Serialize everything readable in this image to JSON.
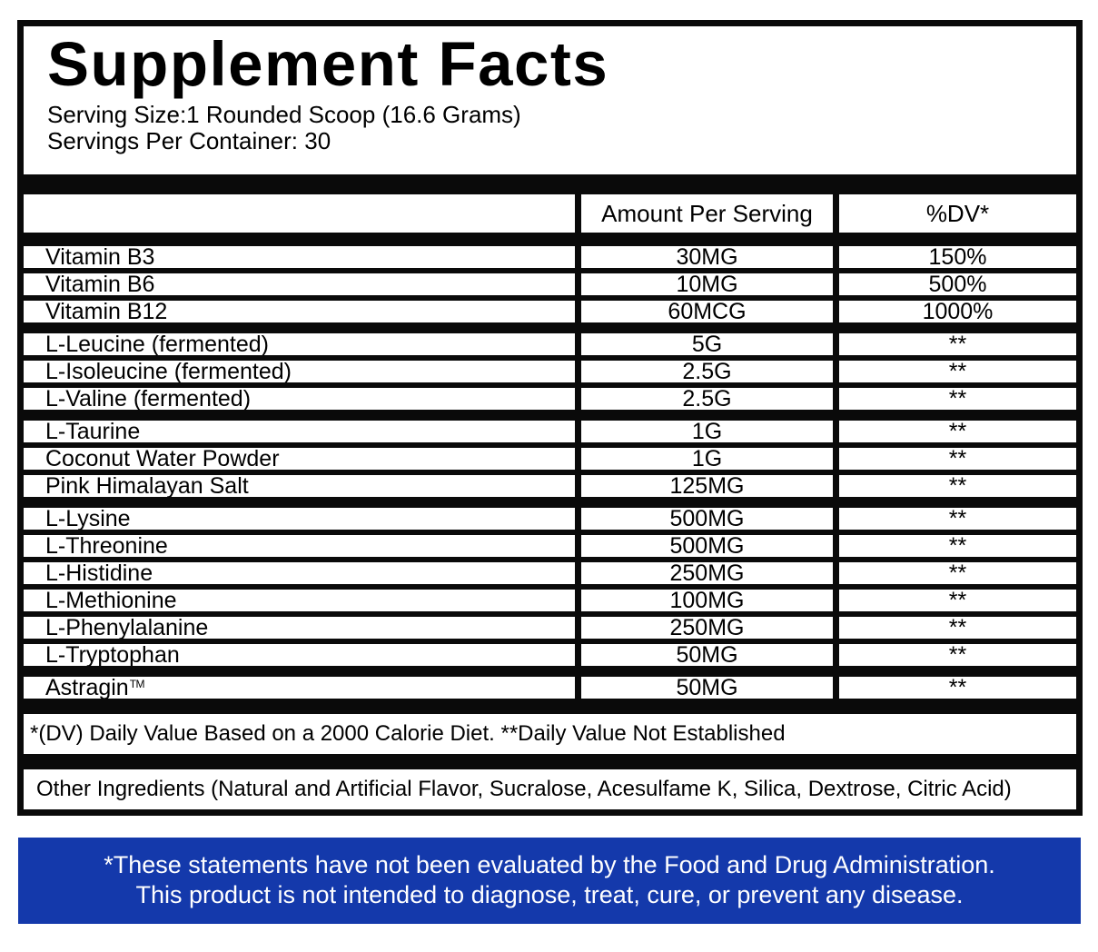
{
  "title": "Supplement Facts",
  "serving_size": "Serving Size:1 Rounded Scoop (16.6 Grams)",
  "servings_per_container": "Servings Per Container: 30",
  "table": {
    "header": {
      "amount": "Amount Per Serving",
      "dv": "%DV*"
    },
    "groups": [
      {
        "rows": [
          {
            "name": "Vitamin B3",
            "amount": "30MG",
            "dv": "150%"
          },
          {
            "name": "Vitamin B6",
            "amount": "10MG",
            "dv": "500%"
          },
          {
            "name": "Vitamin B12",
            "amount": "60MCG",
            "dv": "1000%"
          }
        ]
      },
      {
        "rows": [
          {
            "name": "L-Leucine (fermented)",
            "amount": "5G",
            "dv": "**"
          },
          {
            "name": "L-Isoleucine (fermented)",
            "amount": "2.5G",
            "dv": "**"
          },
          {
            "name": "L-Valine (fermented)",
            "amount": "2.5G",
            "dv": "**"
          }
        ]
      },
      {
        "rows": [
          {
            "name": "L-Taurine",
            "amount": "1G",
            "dv": "**"
          },
          {
            "name": "Coconut Water Powder",
            "amount": "1G",
            "dv": "**"
          },
          {
            "name": "Pink Himalayan Salt",
            "amount": "125MG",
            "dv": "**"
          }
        ]
      },
      {
        "rows": [
          {
            "name": "L-Lysine",
            "amount": "500MG",
            "dv": "**"
          },
          {
            "name": "L-Threonine",
            "amount": "500MG",
            "dv": "**"
          },
          {
            "name": "L-Histidine",
            "amount": "250MG",
            "dv": "**"
          },
          {
            "name": "L-Methionine",
            "amount": "100MG",
            "dv": "**"
          },
          {
            "name": "L-Phenylalanine",
            "amount": "250MG",
            "dv": "**"
          },
          {
            "name": "L-Tryptophan",
            "amount": "50MG",
            "dv": "**"
          }
        ]
      },
      {
        "rows": [
          {
            "name": "Astragin",
            "trademark": "TM",
            "amount": "50MG",
            "dv": "**"
          }
        ]
      }
    ]
  },
  "footnote": "*(DV) Daily Value Based on a 2000 Calorie Diet. **Daily Value Not Established",
  "other_ingredients": "Other Ingredients (Natural and Artificial Flavor, Sucralose, Acesulfame K, Silica, Dextrose, Citric Acid)",
  "disclaimer": {
    "line1": "*These statements have not been evaluated by the Food and Drug Administration.",
    "line2": "This product is not intended to diagnose, treat, cure, or prevent any disease.",
    "background": "#1439ab",
    "text_color": "#ffffff"
  },
  "colors": {
    "border": "#0a0a0a",
    "background": "#ffffff"
  }
}
